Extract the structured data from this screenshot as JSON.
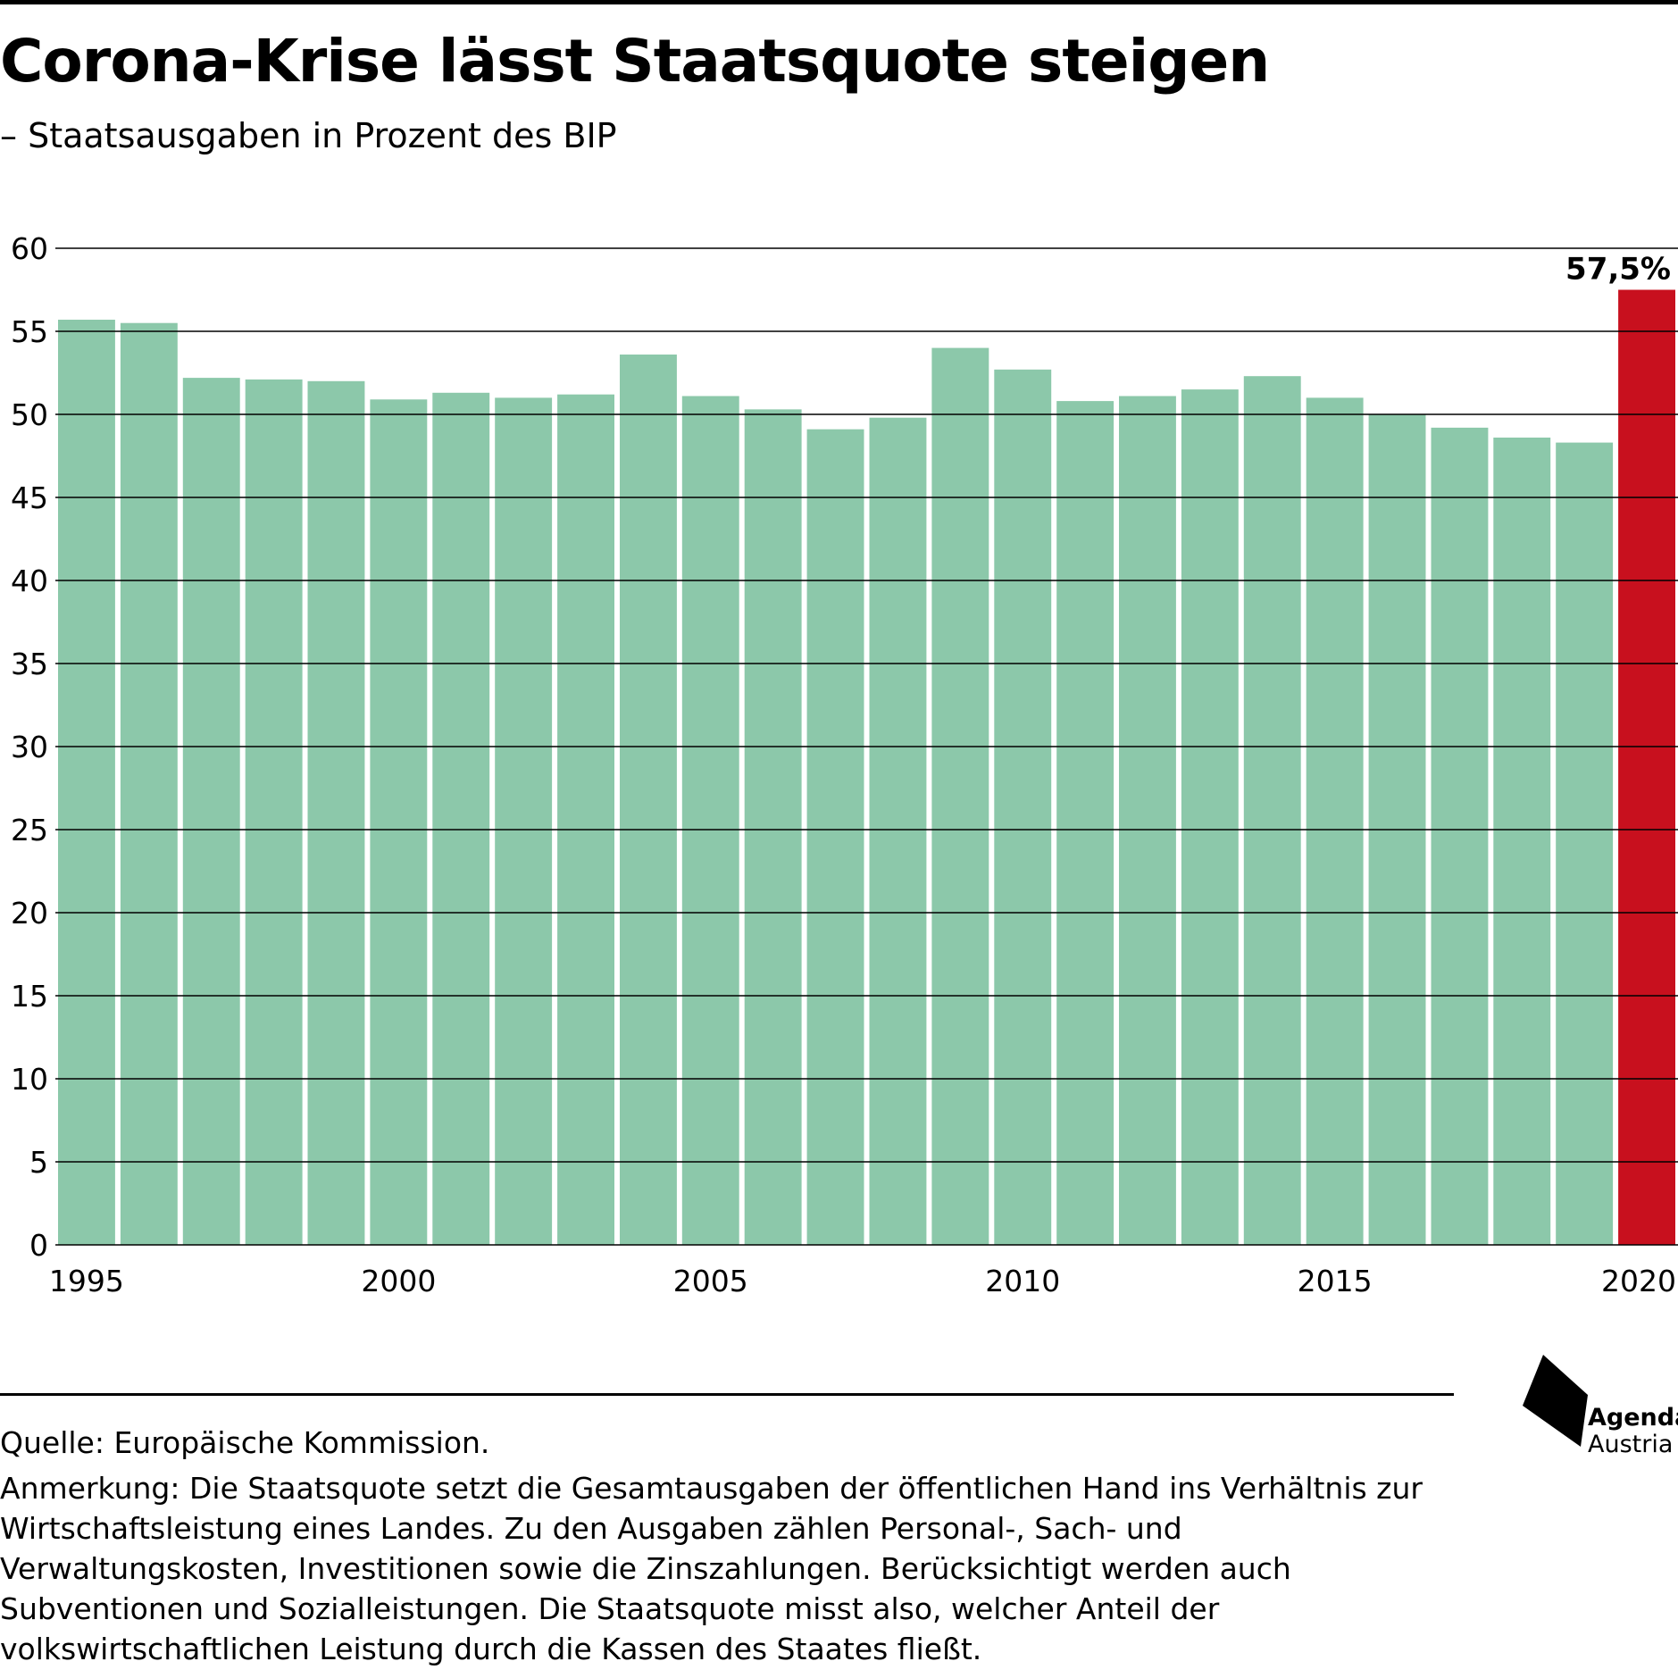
{
  "title": "Corona-Krise lässt Staatsquote steigen",
  "subtitle": "– Staatsausgaben in Prozent des BIP",
  "footer": {
    "source": "Quelle: Europäische Kommission.",
    "note": "Anmerkung: Die Staatsquote setzt die Gesamtausgaben der öffentlichen Hand ins Verhältnis zur Wirtschaftsleistung eines Landes. Zu den Ausgaben zählen Personal-, Sach- und Verwaltungskosten, Investitionen sowie die Zinszahlungen. Berücksichtigt werden auch Subventionen und Sozialleistungen. Die Staatsquote misst also, welcher Anteil der volkswirtschaftlichen Leistung durch die Kassen des Staates fließt."
  },
  "logo": {
    "line1": "Agenda",
    "line2": "Austria"
  },
  "colors": {
    "bar": "#8cc8aa",
    "highlight": "#c8101e",
    "grid": "#000000"
  },
  "chart_data": {
    "type": "bar",
    "categories": [
      "1995",
      "1996",
      "1997",
      "1998",
      "1999",
      "2000",
      "2001",
      "2002",
      "2003",
      "2004",
      "2005",
      "2006",
      "2007",
      "2008",
      "2009",
      "2010",
      "2011",
      "2012",
      "2013",
      "2014",
      "2015",
      "2016",
      "2017",
      "2018",
      "2019",
      "2020"
    ],
    "values": [
      55.7,
      55.5,
      52.2,
      52.1,
      52.0,
      50.9,
      51.3,
      51.0,
      51.2,
      53.6,
      51.1,
      50.3,
      49.1,
      49.8,
      54.0,
      52.7,
      50.8,
      51.1,
      51.5,
      52.3,
      51.0,
      50.0,
      49.2,
      48.6,
      48.3,
      57.5
    ],
    "highlight": "2020",
    "data_labels": [
      {
        "category": "2020",
        "text": "57,5%"
      }
    ],
    "x_tick_labels": [
      "1995",
      "2000",
      "2005",
      "2010",
      "2015",
      "2020"
    ],
    "y_ticks": [
      0,
      5,
      10,
      15,
      20,
      25,
      30,
      35,
      40,
      45,
      50,
      55,
      60
    ],
    "ylim": [
      0,
      60
    ],
    "grid": true,
    "xlabel": "",
    "ylabel": ""
  }
}
